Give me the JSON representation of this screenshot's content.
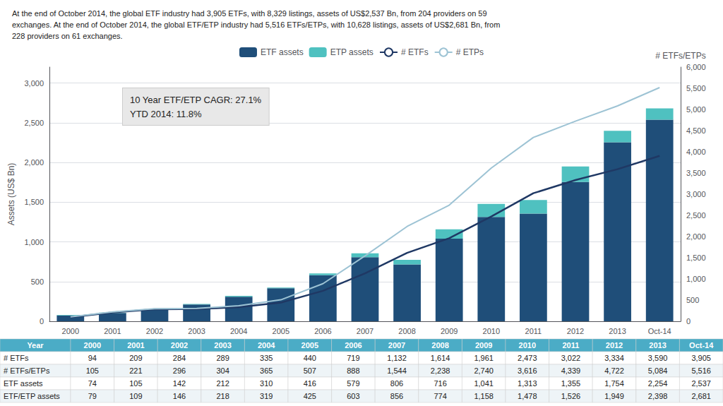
{
  "chart_data": {
    "type": "bar",
    "title": "At the end of October 2014, the global ETF industry had 3,905 ETFs, with 8,329 listings, assets of US$2,537 Bn, from 204 providers on 59\nexchanges. At the end of October 2014, the global ETF/ETP industry had 5,516 ETFs/ETPs, with 10,628 listings, assets of US$2,681 Bn, from\n228 providers on 61 exchanges.",
    "categories": [
      "2000",
      "2001",
      "2002",
      "2003",
      "2004",
      "2005",
      "2006",
      "2007",
      "2008",
      "2009",
      "2010",
      "2011",
      "2012",
      "2013",
      "Oct-14"
    ],
    "series": [
      {
        "name": "ETF assets",
        "type": "bar",
        "color": "#1F4E79",
        "values": [
          74,
          105,
          142,
          212,
          310,
          416,
          579,
          806,
          716,
          1041,
          1313,
          1355,
          1754,
          2254,
          2537
        ]
      },
      {
        "name": "ETP assets",
        "type": "bar",
        "color": "#4FC1C0",
        "values": [
          5,
          4,
          4,
          6,
          9,
          9,
          24,
          50,
          58,
          117,
          165,
          171,
          195,
          144,
          144
        ]
      },
      {
        "name": "# ETFs",
        "type": "line",
        "axis": "y2",
        "color": "#1F3864",
        "values": [
          94,
          209,
          284,
          289,
          335,
          440,
          719,
          1132,
          1614,
          1961,
          2473,
          3022,
          3334,
          3590,
          3905
        ]
      },
      {
        "name": "# ETPs",
        "type": "line",
        "axis": "y2",
        "color": "#9DC3D4",
        "values": [
          105,
          221,
          296,
          304,
          365,
          507,
          888,
          1544,
          2238,
          2740,
          3616,
          4339,
          4722,
          5084,
          5516
        ]
      }
    ],
    "stacked": true,
    "ylabel": "Assets (US$ Bn)",
    "y2label": "# ETFs/ETPs",
    "ylim": [
      0,
      3200
    ],
    "yticks": [
      0,
      500,
      {
        "value": 1000,
        "label": "1,000"
      },
      {
        "value": 1500,
        "label": "1,500"
      },
      {
        "value": 2000,
        "label": "2,000"
      },
      {
        "value": 2500,
        "label": "2,500"
      },
      {
        "value": 3000,
        "label": "3,000"
      }
    ],
    "y2lim": [
      0,
      6000
    ],
    "y2ticks": [
      0,
      500,
      {
        "value": 1000,
        "label": "1,000"
      },
      {
        "value": 1500,
        "label": "1,500"
      },
      {
        "value": 2000,
        "label": "2,000"
      },
      {
        "value": 2500,
        "label": "2,500"
      },
      {
        "value": 3000,
        "label": "3,000"
      },
      {
        "value": 3500,
        "label": "3,500"
      },
      {
        "value": 4000,
        "label": "4,000"
      },
      {
        "value": 4500,
        "label": "4,500"
      },
      {
        "value": 5000,
        "label": "5,000"
      },
      {
        "value": 5500,
        "label": "5,500"
      },
      {
        "value": 6000,
        "label": "6,000"
      }
    ],
    "grid": true,
    "legend": "top",
    "annotations": [
      "10 Year ETF/ETP CAGR: 27.1%",
      "YTD 2014: 11.8%"
    ],
    "table": {
      "header": "Year",
      "color": "#4BACC6",
      "rows": [
        {
          "name": "# ETFs",
          "values": [
            94,
            209,
            284,
            289,
            335,
            440,
            719,
            1132,
            1614,
            1961,
            2473,
            3022,
            3334,
            3590,
            3905
          ],
          "value_labels": [
            "94",
            "209",
            "284",
            "289",
            "335",
            "440",
            "719",
            "1,132",
            "1,614",
            "1,961",
            "2,473",
            "3,022",
            "3,334",
            "3,590",
            "3,905"
          ]
        },
        {
          "name": "# ETFs/ETPs",
          "values": [
            105,
            221,
            296,
            304,
            365,
            507,
            888,
            1544,
            2238,
            2740,
            3616,
            4339,
            4722,
            5084,
            5516
          ],
          "value_labels": [
            "105",
            "221",
            "296",
            "304",
            "365",
            "507",
            "888",
            "1,544",
            "2,238",
            "2,740",
            "3,616",
            "4,339",
            "4,722",
            "5,084",
            "5,516"
          ]
        },
        {
          "name": "ETF assets",
          "values": [
            74,
            105,
            142,
            212,
            310,
            416,
            579,
            806,
            716,
            1041,
            1313,
            1355,
            1754,
            2254,
            2537
          ],
          "value_labels": [
            "74",
            "105",
            "142",
            "212",
            "310",
            "416",
            "579",
            "806",
            "716",
            "1,041",
            "1,313",
            "1,355",
            "1,754",
            "2,254",
            "2,537"
          ]
        },
        {
          "name": "ETF/ETP assets",
          "values": [
            79,
            109,
            146,
            218,
            319,
            425,
            603,
            856,
            774,
            1158,
            1478,
            1526,
            1949,
            2398,
            2681
          ],
          "value_labels": [
            "79",
            "109",
            "146",
            "218",
            "319",
            "425",
            "603",
            "856",
            "774",
            "1,158",
            "1,478",
            "1,526",
            "1,949",
            "2,398",
            "2,681"
          ]
        }
      ]
    }
  }
}
